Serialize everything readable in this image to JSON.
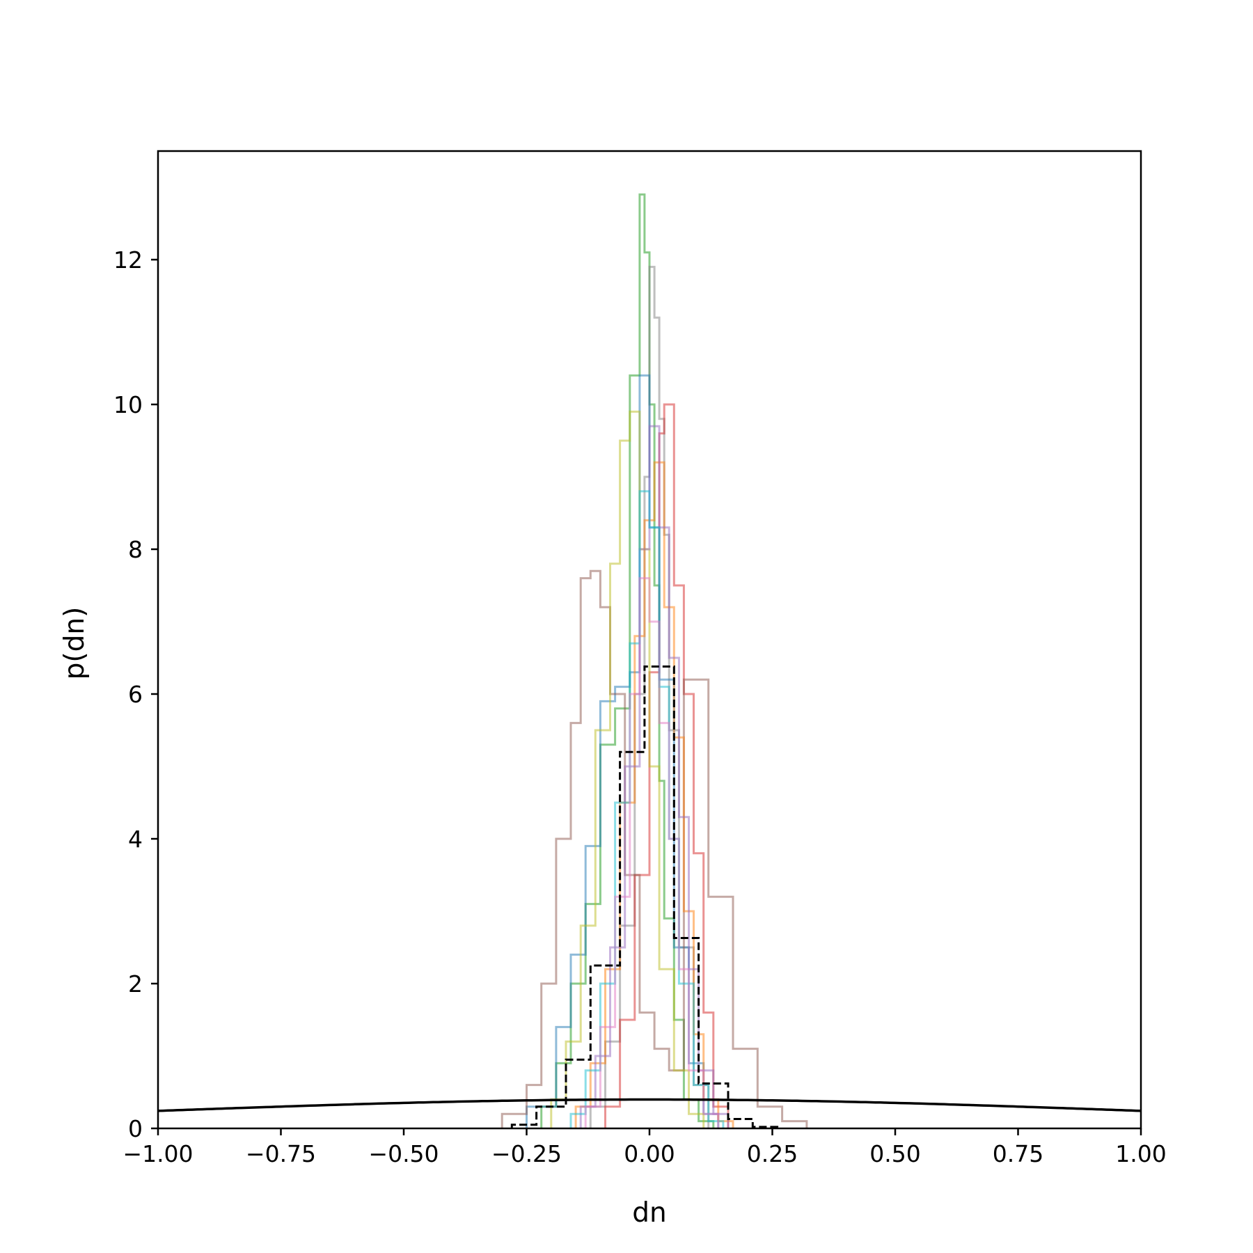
{
  "chart_data": {
    "type": "histogram",
    "title": "",
    "xlabel": "dn",
    "ylabel": "p(dn)",
    "xlim": [
      -1.0,
      1.0
    ],
    "ylim": [
      0,
      13.5
    ],
    "x_ticks": [
      -1.0,
      -0.75,
      -0.5,
      -0.25,
      0.0,
      0.25,
      0.5,
      0.75,
      1.0
    ],
    "x_tick_labels": [
      "−1.00",
      "−0.75",
      "−0.50",
      "−0.25",
      "0.00",
      "0.25",
      "0.50",
      "0.75",
      "1.00"
    ],
    "y_ticks": [
      0,
      2,
      4,
      6,
      8,
      10,
      12
    ],
    "y_tick_labels": [
      "0",
      "2",
      "4",
      "6",
      "8",
      "10",
      "12"
    ],
    "grid": false,
    "legend": false,
    "histograms": [
      {
        "color": "#2ca02c",
        "style": "step",
        "alpha": 0.55,
        "edges": [
          -0.22,
          -0.19,
          -0.16,
          -0.13,
          -0.1,
          -0.07,
          -0.04,
          -0.02,
          -0.01,
          0.0,
          0.01,
          0.02,
          0.03,
          0.05,
          0.07,
          0.1,
          0.13
        ],
        "values": [
          0.3,
          0.9,
          2.0,
          3.1,
          5.3,
          5.8,
          10.4,
          12.9,
          12.1,
          10.0,
          7.5,
          4.8,
          2.9,
          1.5,
          0.4,
          0.1
        ]
      },
      {
        "color": "#7f7f7f",
        "style": "step",
        "alpha": 0.5,
        "edges": [
          -0.12,
          -0.09,
          -0.06,
          -0.03,
          -0.01,
          0.0,
          0.01,
          0.02,
          0.03,
          0.04,
          0.06,
          0.09,
          0.12
        ],
        "values": [
          0.3,
          1.2,
          2.8,
          6.0,
          9.0,
          11.9,
          11.2,
          9.8,
          8.2,
          5.5,
          2.5,
          0.6
        ]
      },
      {
        "color": "#d62728",
        "style": "step",
        "alpha": 0.5,
        "edges": [
          -0.09,
          -0.06,
          -0.03,
          0.0,
          0.02,
          0.03,
          0.05,
          0.07,
          0.09,
          0.11,
          0.13,
          0.16
        ],
        "values": [
          0.3,
          1.5,
          3.5,
          6.3,
          9.6,
          10.0,
          7.5,
          6.0,
          3.8,
          1.6,
          0.3
        ]
      },
      {
        "color": "#1f77b4",
        "style": "step",
        "alpha": 0.5,
        "edges": [
          -0.25,
          -0.19,
          -0.16,
          -0.13,
          -0.1,
          -0.07,
          -0.04,
          -0.02,
          0.0,
          0.02,
          0.05,
          0.08,
          0.11,
          0.14
        ],
        "values": [
          0.3,
          1.4,
          2.4,
          3.9,
          5.9,
          6.1,
          6.3,
          10.4,
          8.3,
          6.2,
          2.5,
          0.9,
          0.2
        ]
      },
      {
        "color": "#8c564b",
        "style": "step",
        "alpha": 0.5,
        "edges": [
          -0.3,
          -0.25,
          -0.22,
          -0.19,
          -0.16,
          -0.14,
          -0.12,
          -0.1,
          -0.08,
          -0.05,
          -0.02,
          0.01,
          0.04,
          0.07,
          0.12,
          0.17,
          0.22,
          0.27,
          0.32
        ],
        "values": [
          0.2,
          0.6,
          2.0,
          4.0,
          5.6,
          7.6,
          7.7,
          7.2,
          6.0,
          3.5,
          1.6,
          1.1,
          0.8,
          6.2,
          3.2,
          1.1,
          0.3,
          0.1
        ]
      },
      {
        "color": "#bcbd22",
        "style": "step",
        "alpha": 0.5,
        "edges": [
          -0.2,
          -0.17,
          -0.14,
          -0.11,
          -0.08,
          -0.06,
          -0.04,
          -0.02,
          0.0,
          0.02,
          0.05,
          0.08,
          0.11
        ],
        "values": [
          0.4,
          1.2,
          2.8,
          5.5,
          7.8,
          9.5,
          9.9,
          8.0,
          5.0,
          2.2,
          0.8,
          0.2
        ]
      },
      {
        "color": "#ff7f0e",
        "style": "step",
        "alpha": 0.5,
        "edges": [
          -0.15,
          -0.12,
          -0.09,
          -0.06,
          -0.03,
          -0.01,
          0.01,
          0.03,
          0.05,
          0.07,
          0.09,
          0.11,
          0.14,
          0.17
        ],
        "values": [
          0.3,
          0.9,
          2.2,
          4.5,
          6.8,
          8.4,
          9.2,
          7.2,
          5.4,
          3.0,
          1.3,
          0.4,
          0.1
        ]
      },
      {
        "color": "#9467bd",
        "style": "step",
        "alpha": 0.5,
        "edges": [
          -0.14,
          -0.11,
          -0.08,
          -0.05,
          -0.02,
          0.0,
          0.02,
          0.04,
          0.06,
          0.08,
          0.1,
          0.13,
          0.16
        ],
        "values": [
          0.3,
          1.0,
          2.5,
          5.0,
          8.0,
          9.7,
          8.3,
          6.5,
          4.3,
          2.2,
          0.8,
          0.2
        ]
      },
      {
        "color": "#17becf",
        "style": "step",
        "alpha": 0.5,
        "edges": [
          -0.16,
          -0.13,
          -0.1,
          -0.07,
          -0.04,
          -0.02,
          0.0,
          0.02,
          0.04,
          0.06,
          0.09,
          0.12,
          0.15
        ],
        "values": [
          0.2,
          0.8,
          2.0,
          4.5,
          6.7,
          8.8,
          8.3,
          6.1,
          4.0,
          2.0,
          0.6,
          0.1
        ]
      },
      {
        "color": "#e377c2",
        "style": "step",
        "alpha": 0.5,
        "edges": [
          -0.13,
          -0.1,
          -0.07,
          -0.04,
          -0.02,
          0.0,
          0.02,
          0.04,
          0.06,
          0.08,
          0.11,
          0.14
        ],
        "values": [
          0.3,
          1.4,
          3.2,
          6.0,
          7.6,
          7.0,
          5.6,
          4.0,
          2.2,
          0.8,
          0.2
        ]
      },
      {
        "color": "#000000",
        "style": "dashed-step",
        "alpha": 1.0,
        "edges": [
          -0.28,
          -0.23,
          -0.17,
          -0.12,
          -0.06,
          -0.01,
          0.05,
          0.1,
          0.16,
          0.21,
          0.26
        ],
        "values": [
          0.05,
          0.3,
          0.95,
          2.25,
          5.2,
          6.38,
          2.63,
          0.62,
          0.13,
          0.02
        ]
      }
    ],
    "reference_curve": {
      "type": "normal_pdf",
      "mean": 0,
      "std": 1,
      "color": "#000000",
      "linewidth": 3.5
    }
  }
}
